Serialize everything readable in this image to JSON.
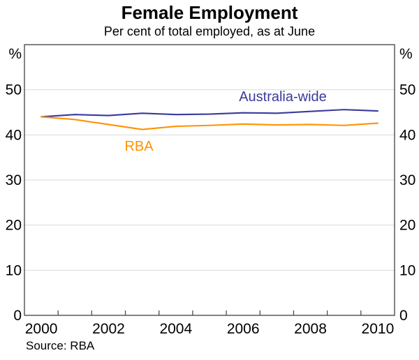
{
  "title": "Female Employment",
  "subtitle": "Per cent of total employed, as at June",
  "source": "Source: RBA",
  "chart_data": {
    "type": "line",
    "title": "Female Employment",
    "subtitle": "Per cent of total employed, as at June",
    "source": "Source: RBA",
    "x": [
      2000,
      2001,
      2002,
      2003,
      2004,
      2005,
      2006,
      2007,
      2008,
      2009,
      2010
    ],
    "series": [
      {
        "name": "Australia-wide",
        "color": "#3a3a9c",
        "values": [
          44.0,
          44.5,
          44.3,
          44.8,
          44.5,
          44.6,
          44.9,
          44.8,
          45.2,
          45.6,
          45.3
        ]
      },
      {
        "name": "RBA",
        "color": "#ff9200",
        "values": [
          44.0,
          43.4,
          42.3,
          41.2,
          41.9,
          42.1,
          42.4,
          42.2,
          42.3,
          42.1,
          42.6
        ]
      }
    ],
    "unit_left": "%",
    "unit_right": "%",
    "ylim": [
      0,
      60
    ],
    "yticks": [
      0,
      10,
      20,
      30,
      40,
      50
    ],
    "xlim": [
      1999.5,
      2010.5
    ],
    "xtick_labels": [
      "2000",
      "2002",
      "2004",
      "2006",
      "2008",
      "2010"
    ],
    "grid": true,
    "legend": "inline-labels",
    "grid_color": "#d9d9d9",
    "frame_color": "#4d4d52",
    "tick_color": "#4d4d52"
  }
}
